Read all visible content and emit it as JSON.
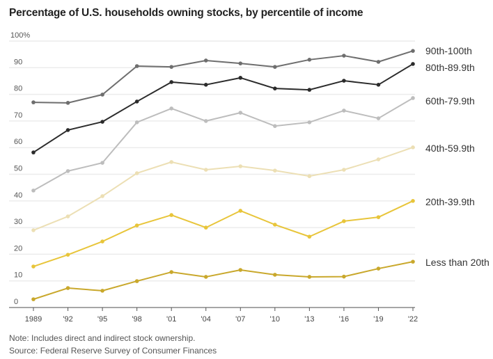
{
  "title": "Percentage of U.S. households owning stocks, by percentile of income",
  "note": "Note: Includes direct and indirect stock ownership.",
  "source": "Source: Federal Reserve Survey of Consumer Finances",
  "chart_data": {
    "type": "line",
    "title": "Percentage of U.S. households owning stocks, by percentile of income",
    "xlabel": "",
    "ylabel": "",
    "x": [
      1989,
      1992,
      1995,
      1998,
      2001,
      2004,
      2007,
      2010,
      2013,
      2016,
      2019,
      2022
    ],
    "x_tick_labels": [
      "1989",
      "'92",
      "'95",
      "'98",
      "'01",
      "'04",
      "'07",
      "'10",
      "'13",
      "'16",
      "'19",
      "'22"
    ],
    "ylim": [
      0,
      100
    ],
    "y_ticks": [
      0,
      10,
      20,
      30,
      40,
      50,
      60,
      70,
      80,
      90,
      100
    ],
    "y_tick_labels": [
      "0",
      "10",
      "20",
      "30",
      "40",
      "50",
      "60",
      "70",
      "80",
      "90",
      "100%"
    ],
    "grid": true,
    "legend": "right, labels at line ends",
    "series": [
      {
        "name": "90th-100th",
        "color": "#6e6e6e",
        "values": [
          77.0,
          76.8,
          79.9,
          90.6,
          90.3,
          92.7,
          91.6,
          90.3,
          93.0,
          94.5,
          92.2,
          96.3
        ]
      },
      {
        "name": "80th-89.9th",
        "color": "#2b2b2b",
        "values": [
          58.2,
          66.6,
          69.7,
          77.3,
          84.6,
          83.6,
          86.2,
          82.2,
          81.7,
          85.1,
          83.6,
          91.4
        ]
      },
      {
        "name": "60th-79.9th",
        "color": "#bdbdbd",
        "values": [
          43.9,
          51.2,
          54.3,
          69.5,
          74.7,
          70.0,
          73.1,
          68.1,
          69.5,
          73.9,
          71.0,
          78.6
        ]
      },
      {
        "name": "40th-59.9th",
        "color": "#ecdfb4",
        "values": [
          29.0,
          34.2,
          41.8,
          50.4,
          54.6,
          51.7,
          53.0,
          51.4,
          49.3,
          51.7,
          55.6,
          60.1
        ]
      },
      {
        "name": "20th-39.9th",
        "color": "#e8c53a",
        "values": [
          15.4,
          19.8,
          24.8,
          30.8,
          34.7,
          30.0,
          36.3,
          31.1,
          26.6,
          32.4,
          33.9,
          40.0
        ]
      },
      {
        "name": "Less than 20th",
        "color": "#c9a82c",
        "values": [
          3.1,
          7.3,
          6.3,
          9.9,
          13.3,
          11.5,
          14.1,
          12.3,
          11.5,
          11.6,
          14.6,
          17.2
        ]
      }
    ]
  }
}
